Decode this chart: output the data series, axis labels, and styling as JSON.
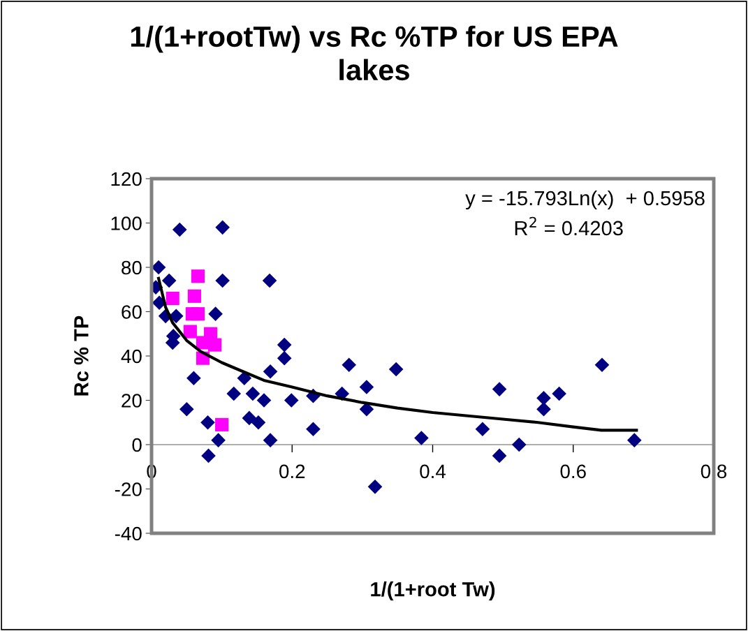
{
  "chart_data": {
    "type": "scatter",
    "title": "1/(1+rootTw) vs Rc %TP for US EPA\nlakes",
    "xlabel": "1/(1+root Tw)",
    "ylabel": "Rc % TP",
    "xlim": [
      0,
      0.8
    ],
    "xticks": [
      0,
      0.2,
      0.4,
      0.6,
      0.8
    ],
    "ylim": [
      -40,
      120
    ],
    "yticks": [
      -40,
      -20,
      0,
      20,
      40,
      60,
      80,
      100,
      120
    ],
    "grid": false,
    "series": [
      {
        "color": "#000080",
        "marker": "diamond",
        "x": [
          0.01,
          0.025,
          0.006,
          0.011,
          0.02,
          0.035,
          0.031,
          0.03,
          0.04,
          0.101,
          0.101,
          0.091,
          0.168,
          0.189,
          0.189,
          0.169,
          0.132,
          0.117,
          0.144,
          0.16,
          0.199,
          0.06,
          0.05,
          0.08,
          0.139,
          0.152,
          0.095,
          0.169,
          0.081,
          0.281,
          0.348,
          0.306,
          0.271,
          0.23,
          0.306,
          0.23,
          0.384,
          0.471,
          0.495,
          0.495,
          0.318,
          0.641,
          0.558,
          0.58,
          0.558,
          0.523,
          0.687
        ],
        "values": [
          80,
          74,
          71,
          64,
          58,
          58,
          49,
          46,
          97,
          98,
          74,
          59,
          74,
          45,
          39,
          33,
          30,
          23,
          23,
          20,
          20,
          30,
          16,
          10,
          12,
          10,
          2,
          2,
          -5,
          36,
          34,
          26,
          23,
          22,
          16,
          7,
          3,
          7,
          25,
          -5,
          -19,
          36,
          21,
          23,
          16,
          0,
          2
        ]
      },
      {
        "color": "#ff00ff",
        "marker": "square",
        "x": [
          0.066,
          0.03,
          0.061,
          0.058,
          0.066,
          0.055,
          0.084,
          0.09,
          0.073,
          0.073,
          0.1
        ],
        "values": [
          76,
          66,
          67,
          59,
          59,
          51,
          50,
          45,
          39,
          46,
          9
        ]
      },
      {
        "type": "line",
        "color": "#000000",
        "marker": "none",
        "line_style": "solid",
        "x": [
          0.01,
          0.02,
          0.03,
          0.05,
          0.07,
          0.1,
          0.13,
          0.16,
          0.2,
          0.25,
          0.3,
          0.35,
          0.4,
          0.45,
          0.5,
          0.55,
          0.6,
          0.64,
          0.69
        ],
        "values": [
          75,
          62,
          55,
          47,
          42,
          37,
          33,
          29,
          26,
          22,
          19,
          16.5,
          14.5,
          13,
          11.5,
          10,
          8,
          6.5,
          6.5
        ]
      }
    ],
    "annotations": [
      "y = -15.793Ln(x)  + 0.5958",
      "R$^{2}$ = 0.4203"
    ]
  }
}
